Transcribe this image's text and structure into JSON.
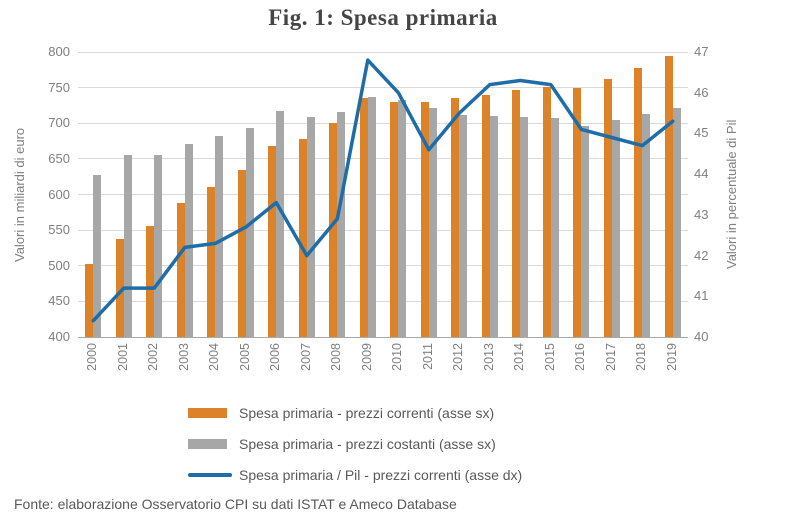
{
  "figure": {
    "title": "Fig. 1: Spesa primaria",
    "source": "Fonte: elaborazione Osservatorio CPI su dati ISTAT e Ameco Database"
  },
  "chart_data": {
    "type": "bar",
    "subtype": "combo-bar-line-dual-axis",
    "title": "Fig. 1: Spesa primaria",
    "categories": [
      "2000",
      "2001",
      "2002",
      "2003",
      "2004",
      "2005",
      "2006",
      "2007",
      "2008",
      "2009",
      "2010",
      "2011",
      "2012",
      "2013",
      "2014",
      "2015",
      "2016",
      "2017",
      "2018",
      "2019"
    ],
    "series": [
      {
        "name": "Spesa primaria - prezzi correnti (asse sx)",
        "type": "bar",
        "axis": "left",
        "color": "#dc8228",
        "values": [
          502,
          537,
          556,
          588,
          611,
          634,
          668,
          678,
          700,
          735,
          730,
          730,
          736,
          740,
          746,
          751,
          750,
          762,
          777,
          795
        ]
      },
      {
        "name": "Spesa primaria - prezzi costanti (asse sx)",
        "type": "bar",
        "axis": "left",
        "color": "#a7a7a7",
        "values": [
          628,
          655,
          655,
          671,
          682,
          694,
          717,
          709,
          716,
          737,
          732,
          721,
          712,
          710,
          709,
          707,
          696,
          705,
          713,
          722
        ]
      },
      {
        "name": "Spesa primaria / Pil - prezzi correnti (asse dx)",
        "type": "line",
        "axis": "right",
        "color": "#1f6da8",
        "values": [
          40.4,
          41.2,
          41.2,
          42.2,
          42.3,
          42.7,
          43.3,
          42.0,
          42.9,
          46.8,
          46.0,
          44.6,
          45.5,
          46.2,
          46.3,
          46.2,
          45.1,
          44.9,
          44.7,
          45.3
        ]
      }
    ],
    "left_axis": {
      "title": "Valori in miliardi di euro",
      "min": 400,
      "max": 800,
      "step": 50,
      "ticks": [
        "800",
        "750",
        "700",
        "650",
        "600",
        "550",
        "500",
        "450",
        "400"
      ]
    },
    "right_axis": {
      "title": "Valori in percentuale di Pil",
      "min": 40,
      "max": 47,
      "step": 1,
      "ticks": [
        "47",
        "46",
        "45",
        "44",
        "43",
        "42",
        "41",
        "40"
      ]
    },
    "grid": true,
    "legend_position": "bottom",
    "colors": {
      "gridline": "#d9d9d9",
      "axis_line": "#a9a9a9",
      "tick_text": "#7f7f7f",
      "legend_text": "#595959",
      "title_text": "#454545"
    }
  }
}
